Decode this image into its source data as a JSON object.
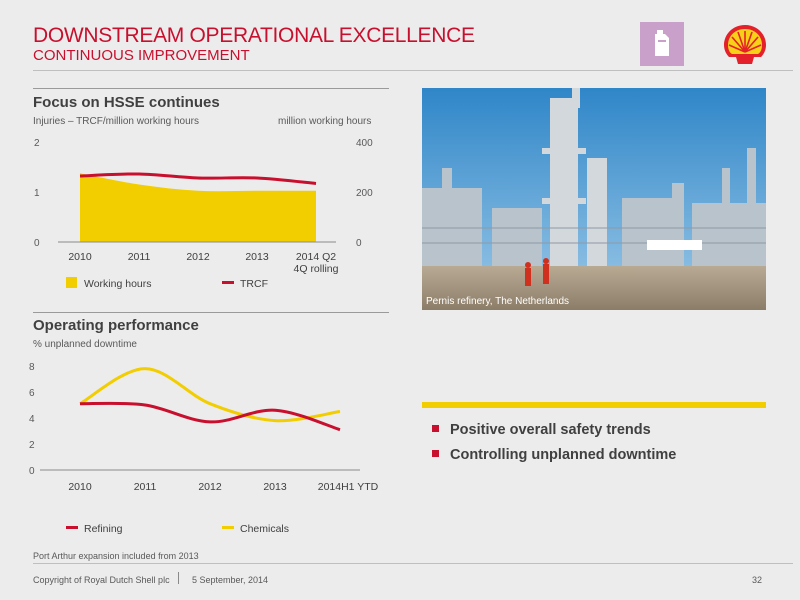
{
  "header": {
    "title": "DOWNSTREAM OPERATIONAL EXCELLENCE",
    "subtitle": "CONTINUOUS IMPROVEMENT",
    "category_icon": "fuel-can-icon",
    "logo": "shell-pecten-logo",
    "colors": {
      "brand_red": "#c8102e",
      "brand_yellow": "#f2cd00",
      "category_purple": "#c9a0c9"
    }
  },
  "photo": {
    "caption": "Pernis refinery, The Netherlands"
  },
  "bullets": [
    "Positive overall safety trends",
    "Controlling unplanned downtime"
  ],
  "chart_data": [
    {
      "type": "area",
      "title": "Focus on HSSE continues",
      "ylabel_left": "Injuries – TRCF/million working hours",
      "ylabel_right": "million working hours",
      "categories": [
        "2010",
        "2011",
        "2012",
        "2013",
        "2014 Q2\n4Q rolling"
      ],
      "y_left_ticks": [
        "0",
        "1",
        "2"
      ],
      "y_right_ticks": [
        "0",
        "200",
        "400"
      ],
      "ylim_left": [
        0,
        2
      ],
      "ylim_right": [
        0,
        400
      ],
      "series": [
        {
          "name": "Working hours",
          "type": "area",
          "axis": "right",
          "color": "#f2cd00",
          "values": [
            275,
            230,
            205,
            205,
            205
          ]
        },
        {
          "name": "TRCF",
          "type": "line",
          "axis": "left",
          "color": "#c8102e",
          "values": [
            1.32,
            1.36,
            1.28,
            1.28,
            1.17
          ]
        }
      ],
      "legend": "bottom"
    },
    {
      "type": "line",
      "title": "Operating performance",
      "ylabel": "% unplanned downtime",
      "categories": [
        "2010",
        "2011",
        "2012",
        "2013",
        "2014H1 YTD"
      ],
      "y_ticks": [
        "0",
        "2",
        "4",
        "6",
        "8"
      ],
      "ylim": [
        0,
        8
      ],
      "series": [
        {
          "name": "Refining",
          "color": "#c8102e",
          "values": [
            5.1,
            5.0,
            3.7,
            4.6,
            3.1
          ]
        },
        {
          "name": "Chemicals",
          "color": "#f2cd00",
          "values": [
            5.1,
            7.8,
            5.1,
            3.8,
            4.5
          ]
        }
      ],
      "legend": "bottom"
    }
  ],
  "footer": {
    "note": "Port Arthur expansion included from 2013",
    "copyright": "Copyright of Royal Dutch Shell plc",
    "date": "5 September, 2014",
    "page": "32"
  }
}
